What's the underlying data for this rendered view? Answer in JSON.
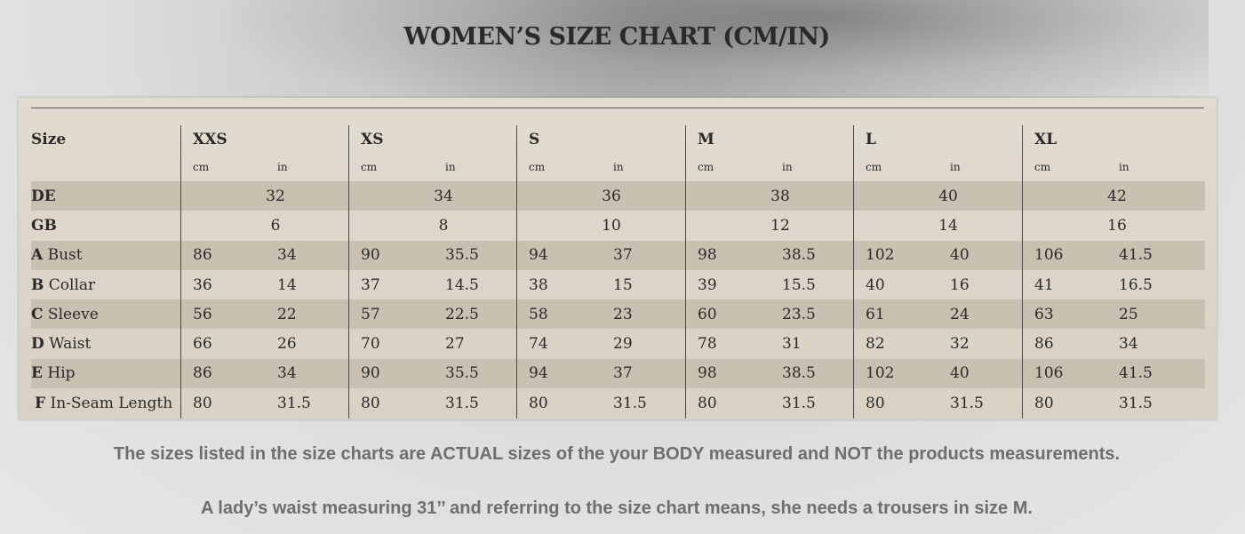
{
  "title": "WOMEN’S SIZE CHART (CM/IN)",
  "table": {
    "size_label": "Size",
    "sizes": [
      "XXS",
      "XS",
      "S",
      "M",
      "L",
      "XL"
    ],
    "unit_cm": "cm",
    "unit_in": "in",
    "rows": [
      {
        "code": "",
        "label": "DE",
        "merged": true,
        "values": [
          "32",
          "34",
          "36",
          "38",
          "40",
          "42"
        ]
      },
      {
        "code": "",
        "label": "GB",
        "merged": true,
        "values": [
          "6",
          "8",
          "10",
          "12",
          "14",
          "16"
        ]
      },
      {
        "code": "A",
        "label": "Bust",
        "merged": false,
        "values": [
          [
            "86",
            "34"
          ],
          [
            "90",
            "35.5"
          ],
          [
            "94",
            "37"
          ],
          [
            "98",
            "38.5"
          ],
          [
            "102",
            "40"
          ],
          [
            "106",
            "41.5"
          ]
        ]
      },
      {
        "code": "B",
        "label": "Collar",
        "merged": false,
        "values": [
          [
            "36",
            "14"
          ],
          [
            "37",
            "14.5"
          ],
          [
            "38",
            "15"
          ],
          [
            "39",
            "15.5"
          ],
          [
            "40",
            "16"
          ],
          [
            "41",
            "16.5"
          ]
        ]
      },
      {
        "code": "C",
        "label": "Sleeve",
        "merged": false,
        "values": [
          [
            "56",
            "22"
          ],
          [
            "57",
            "22.5"
          ],
          [
            "58",
            "23"
          ],
          [
            "60",
            "23.5"
          ],
          [
            "61",
            "24"
          ],
          [
            "63",
            "25"
          ]
        ]
      },
      {
        "code": "D",
        "label": "Waist",
        "merged": false,
        "values": [
          [
            "66",
            "26"
          ],
          [
            "70",
            "27"
          ],
          [
            "74",
            "29"
          ],
          [
            "78",
            "31"
          ],
          [
            "82",
            "32"
          ],
          [
            "86",
            "34"
          ]
        ]
      },
      {
        "code": "E",
        "label": "Hip",
        "merged": false,
        "values": [
          [
            "86",
            "34"
          ],
          [
            "90",
            "35.5"
          ],
          [
            "94",
            "37"
          ],
          [
            "98",
            "38.5"
          ],
          [
            "102",
            "40"
          ],
          [
            "106",
            "41.5"
          ]
        ]
      },
      {
        "code": "F",
        "label": "In-Seam Length",
        "merged": false,
        "values": [
          [
            "80",
            "31.5"
          ],
          [
            "80",
            "31.5"
          ],
          [
            "80",
            "31.5"
          ],
          [
            "80",
            "31.5"
          ],
          [
            "80",
            "31.5"
          ],
          [
            "80",
            "31.5"
          ]
        ]
      }
    ]
  },
  "notes": [
    "The sizes listed in the size charts are ACTUAL sizes of the your BODY measured and NOT the products measurements.",
    "A lady’s waist measuring  31’’ and referring to the size chart means, she needs a trousers in size M."
  ]
}
